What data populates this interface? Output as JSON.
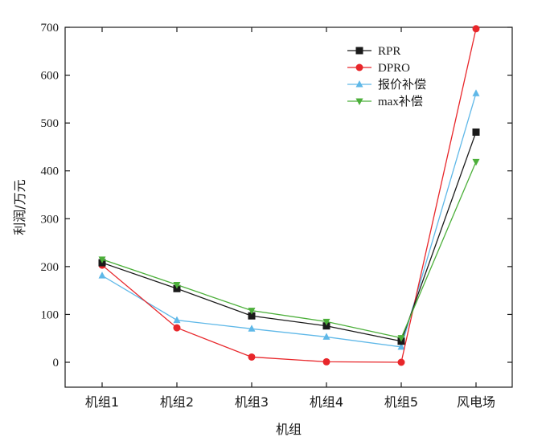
{
  "chart_data": {
    "type": "line",
    "title": "",
    "xlabel": "机组",
    "ylabel": "利润/万元",
    "categories": [
      "机组1",
      "机组2",
      "机组3",
      "机组4",
      "机组5",
      "风电场"
    ],
    "ylim": [
      -50,
      700
    ],
    "yticks": [
      0,
      100,
      200,
      300,
      400,
      500,
      600,
      700
    ],
    "grid": false,
    "legend_position": "top-right",
    "series": [
      {
        "name": "RPR",
        "color": "#1a1a1a",
        "marker": "square",
        "values": [
          208,
          154,
          97,
          76,
          44,
          481
        ]
      },
      {
        "name": "DPRO",
        "color": "#e8262a",
        "marker": "circle",
        "values": [
          203,
          72,
          11,
          1,
          0,
          697
        ]
      },
      {
        "name": "报价补偿",
        "color": "#5fb8e8",
        "marker": "triangle-up",
        "values": [
          181,
          88,
          70,
          53,
          32,
          562
        ]
      },
      {
        "name": "max补偿",
        "color": "#4caf3a",
        "marker": "triangle-down",
        "values": [
          215,
          162,
          108,
          85,
          51,
          419
        ]
      }
    ]
  }
}
